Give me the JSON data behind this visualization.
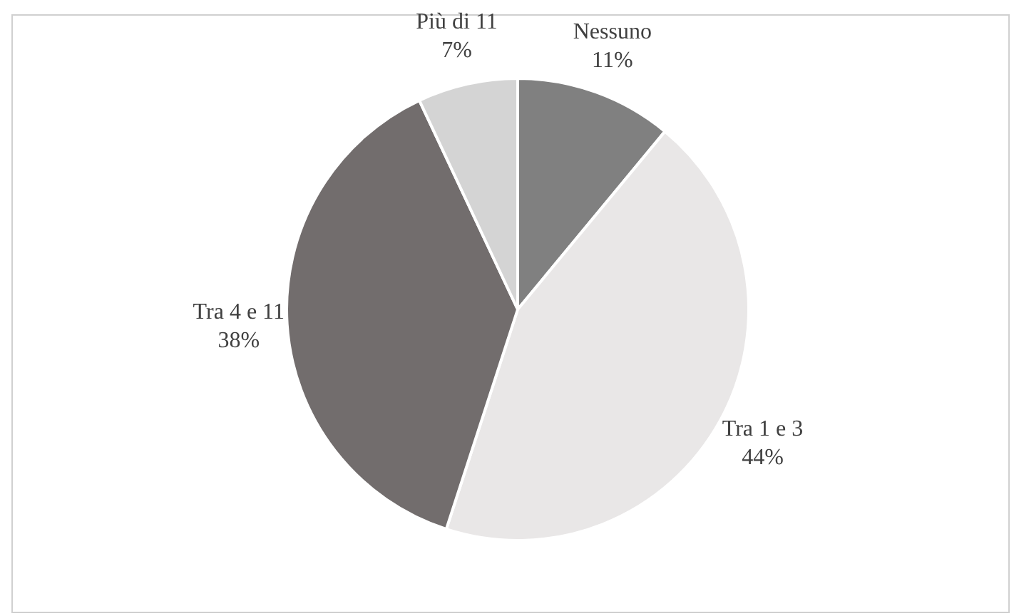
{
  "chart_data": {
    "type": "pie",
    "categories": [
      "Nessuno",
      "Tra 1 e 3",
      "Tra 4 e 11",
      "Più di 11"
    ],
    "values": [
      11,
      44,
      38,
      7
    ],
    "value_labels": [
      "11%",
      "44%",
      "38%",
      "7%"
    ],
    "colors": [
      "#808080",
      "#e9e7e7",
      "#726d6d",
      "#d4d4d4"
    ],
    "legend": false
  }
}
